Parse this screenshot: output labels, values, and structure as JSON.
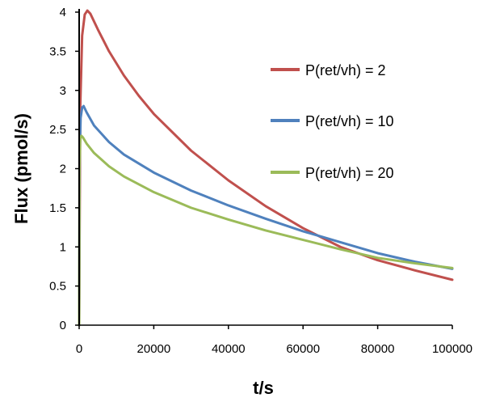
{
  "chart_data": {
    "type": "line",
    "title": "",
    "xlabel": "t/s",
    "ylabel": "Flux (pmol/s)",
    "xlim": [
      0,
      100000
    ],
    "ylim": [
      0,
      4
    ],
    "xticks": [
      0,
      20000,
      40000,
      60000,
      80000,
      100000
    ],
    "yticks": [
      0,
      0.5,
      1,
      1.5,
      2,
      2.5,
      3,
      3.5,
      4
    ],
    "xtick_labels": [
      "0",
      "20000",
      "40000",
      "60000",
      "80000",
      "100000"
    ],
    "ytick_labels": [
      "0",
      "0.5",
      "1",
      "1.5",
      "2",
      "2.5",
      "3",
      "3.5",
      "4"
    ],
    "grid": false,
    "legend": "right",
    "series": [
      {
        "name": "P(ret/vh) = 2",
        "color": "#c0504d",
        "x": [
          0,
          300,
          800,
          1500,
          2200,
          3000,
          5000,
          8000,
          12000,
          16000,
          20000,
          30000,
          40000,
          50000,
          60000,
          70000,
          80000,
          90000,
          100000
        ],
        "y": [
          0,
          2.8,
          3.7,
          3.97,
          4.02,
          3.98,
          3.78,
          3.5,
          3.19,
          2.93,
          2.7,
          2.23,
          1.85,
          1.52,
          1.24,
          1.0,
          0.83,
          0.7,
          0.58
        ]
      },
      {
        "name": "P(ret/vh) = 10",
        "color": "#4f81bd",
        "x": [
          0,
          150,
          400,
          800,
          1200,
          2000,
          4000,
          8000,
          12000,
          20000,
          30000,
          40000,
          50000,
          60000,
          70000,
          80000,
          90000,
          100000
        ],
        "y": [
          0,
          2.2,
          2.65,
          2.78,
          2.8,
          2.72,
          2.55,
          2.34,
          2.18,
          1.95,
          1.72,
          1.53,
          1.36,
          1.2,
          1.06,
          0.92,
          0.81,
          0.72
        ]
      },
      {
        "name": "P(ret/vh) = 20",
        "color": "#9bbb59",
        "x": [
          0,
          100,
          300,
          600,
          1000,
          2000,
          4000,
          8000,
          12000,
          20000,
          30000,
          40000,
          50000,
          60000,
          70000,
          80000,
          90000,
          100000
        ],
        "y": [
          0,
          2.0,
          2.38,
          2.42,
          2.4,
          2.32,
          2.2,
          2.03,
          1.9,
          1.7,
          1.5,
          1.35,
          1.21,
          1.09,
          0.97,
          0.86,
          0.79,
          0.73
        ]
      }
    ]
  }
}
